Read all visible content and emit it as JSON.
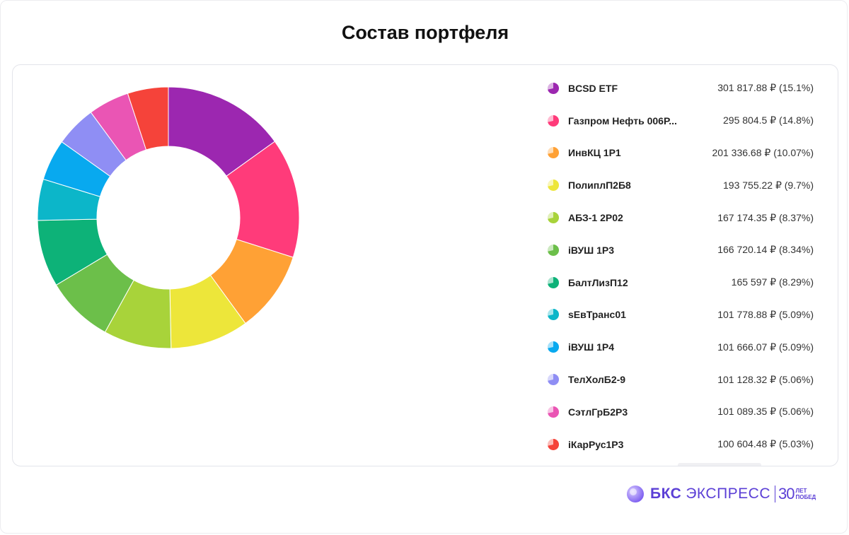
{
  "title": "Состав портфеля",
  "chart_data": {
    "type": "pie",
    "donut": true,
    "title": "Состав портфеля",
    "legend_placement": "right",
    "slices": [
      {
        "label": "BCSD ETF",
        "value": 301817.88,
        "value_text": "301 817.88 ₽",
        "percent": 15.1,
        "percent_text": "(15.1%)",
        "color": "#9c27b0"
      },
      {
        "label": "Газпром Нефть 006Р...",
        "value": 295804.5,
        "value_text": "295 804.5 ₽",
        "percent": 14.8,
        "percent_text": "(14.8%)",
        "color": "#ff3b7a"
      },
      {
        "label": "ИнвКЦ 1Р1",
        "value": 201336.68,
        "value_text": "201 336.68 ₽",
        "percent": 10.07,
        "percent_text": "(10.07%)",
        "color": "#ffa135"
      },
      {
        "label": "ПолиплП2Б8",
        "value": 193755.22,
        "value_text": "193 755.22 ₽",
        "percent": 9.7,
        "percent_text": "(9.7%)",
        "color": "#ede63a"
      },
      {
        "label": "АБЗ-1 2Р02",
        "value": 167174.35,
        "value_text": "167 174.35 ₽",
        "percent": 8.37,
        "percent_text": "(8.37%)",
        "color": "#a8d33a"
      },
      {
        "label": "iВУШ 1Р3",
        "value": 166720.14,
        "value_text": "166 720.14 ₽",
        "percent": 8.34,
        "percent_text": "(8.34%)",
        "color": "#6cbf4a"
      },
      {
        "label": "БалтЛизП12",
        "value": 165597,
        "value_text": "165 597 ₽",
        "percent": 8.29,
        "percent_text": "(8.29%)",
        "color": "#0db278"
      },
      {
        "label": "sЕвТранс01",
        "value": 101778.88,
        "value_text": "101 778.88 ₽",
        "percent": 5.09,
        "percent_text": "(5.09%)",
        "color": "#0cb6c9"
      },
      {
        "label": "iВУШ 1Р4",
        "value": 101666.07,
        "value_text": "101 666.07 ₽",
        "percent": 5.09,
        "percent_text": "(5.09%)",
        "color": "#08a9ef"
      },
      {
        "label": "ТелХолБ2-9",
        "value": 101128.32,
        "value_text": "101 128.32 ₽",
        "percent": 5.06,
        "percent_text": "(5.06%)",
        "color": "#8f8ef4"
      },
      {
        "label": "СэтлГрБ2Р3",
        "value": 101089.35,
        "value_text": "101 089.35 ₽",
        "percent": 5.06,
        "percent_text": "(5.06%)",
        "color": "#ea55b4"
      },
      {
        "label": "iКарРус1Р3",
        "value": 100604.48,
        "value_text": "100 604.48 ₽",
        "percent": 5.03,
        "percent_text": "(5.03%)",
        "color": "#f5433a"
      }
    ]
  },
  "branding": {
    "name": "БКС",
    "product": "ЭКСПРЕСС",
    "badge_number": "30",
    "badge_line1": "ЛЕТ",
    "badge_line2": "ПОБЕД",
    "color": "#5b3fd6",
    "icon": "bks-logo-icon"
  }
}
